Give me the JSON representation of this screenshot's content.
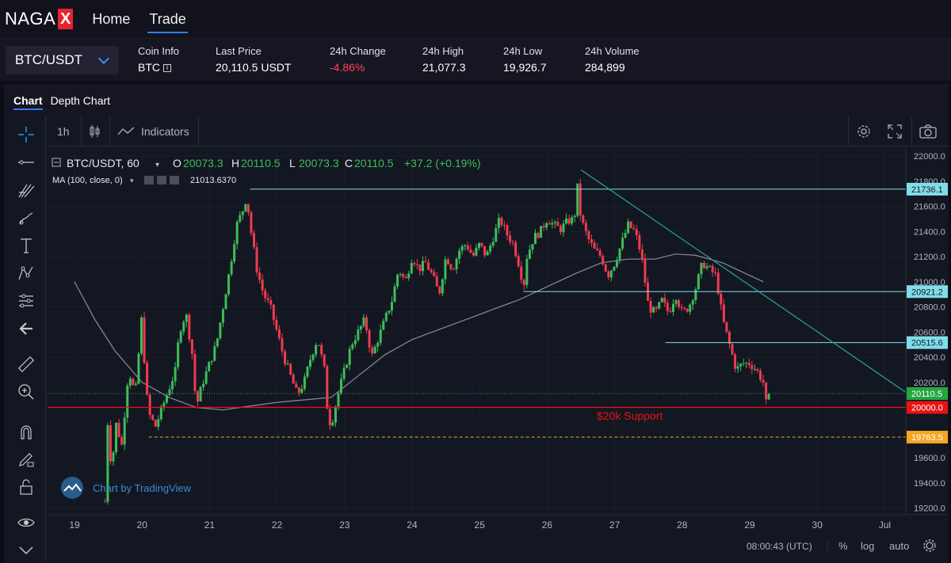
{
  "nav": {
    "logo_text": "NAGA",
    "logo_mark": "X",
    "home": "Home",
    "trade": "Trade"
  },
  "market": {
    "pair": "BTC/USDT",
    "coin_info_label": "Coin Info",
    "coin_info_value": "BTC",
    "last_price_label": "Last Price",
    "last_price_value": "20,110.5 USDT",
    "change_label": "24h Change",
    "change_value": "-4.86%",
    "high_label": "24h High",
    "high_value": "21,077.3",
    "low_label": "24h Low",
    "low_value": "19,926.7",
    "volume_label": "24h Volume",
    "volume_value": "284,899"
  },
  "tabs": {
    "chart": "Chart",
    "depth": "Depth Chart"
  },
  "toolbar": {
    "interval": "1h",
    "indicators": "Indicators",
    "left_tools": [
      "crosshair-icon",
      "trend-line-icon",
      "fib-icon",
      "brush-icon",
      "text-icon",
      "pattern-icon",
      "prediction-icon",
      "back-arrow-icon",
      "ruler-icon",
      "zoom-in-icon",
      "magnet-icon",
      "lock-draw-icon",
      "lock-icon",
      "eye-icon",
      "expand-down-icon"
    ]
  },
  "legend": {
    "symbol": "BTC/USDT, 60",
    "o_label": "O",
    "o": "20073.3",
    "h_label": "H",
    "h": "20110.5",
    "l_label": "L",
    "l": "20073.3",
    "c_label": "C",
    "c": "20110.5",
    "change": "+37.2 (+0.19%)",
    "ma_label": "MA (100, close, 0)",
    "ma_value": "21013.6370"
  },
  "bottom": {
    "time": "08:00:43 (UTC)",
    "percent": "%",
    "log": "log",
    "auto": "auto"
  },
  "watermark": "Chart by TradingView",
  "annotation": "$20k Support",
  "chart_data": {
    "type": "candlestick",
    "title": "BTC/USDT, 60",
    "ylim": [
      19100,
      22050
    ],
    "y_ticks": [
      22000.0,
      21800.0,
      21600.0,
      21400.0,
      21200.0,
      21000.0,
      20800.0,
      20600.0,
      20400.0,
      20200.0,
      19600.0,
      19400.0,
      19200.0
    ],
    "x_ticks": [
      "19",
      "20",
      "21",
      "22",
      "23",
      "24",
      "25",
      "26",
      "27",
      "28",
      "29",
      "30",
      "Jul"
    ],
    "price_labels": [
      {
        "value": 21736.1,
        "text": "21736.1",
        "color": "#80deea"
      },
      {
        "value": 20921.2,
        "text": "20921.2",
        "color": "#80deea"
      },
      {
        "value": 20515.6,
        "text": "20515.6",
        "color": "#80deea"
      },
      {
        "value": 20110.5,
        "text": "20110.5",
        "color": "#26a641"
      },
      {
        "value": 20000.0,
        "text": "20000.0",
        "color": "#e81313"
      },
      {
        "value": 19763.5,
        "text": "19763.5",
        "color": "#f5a623"
      }
    ],
    "close_path": [
      [
        19.45,
        19250
      ],
      [
        19.5,
        20000
      ],
      [
        19.55,
        19400
      ],
      [
        19.6,
        19900
      ],
      [
        19.7,
        19700
      ],
      [
        19.8,
        20300
      ],
      [
        19.9,
        20100
      ],
      [
        20.0,
        20750
      ],
      [
        20.05,
        20200
      ],
      [
        20.1,
        19950
      ],
      [
        20.2,
        19850
      ],
      [
        20.3,
        20000
      ],
      [
        20.4,
        20150
      ],
      [
        20.5,
        20300
      ],
      [
        20.55,
        20600
      ],
      [
        20.65,
        20750
      ],
      [
        20.75,
        20400
      ],
      [
        20.8,
        20000
      ],
      [
        20.9,
        20200
      ],
      [
        21.0,
        20350
      ],
      [
        21.1,
        20500
      ],
      [
        21.2,
        20800
      ],
      [
        21.3,
        21100
      ],
      [
        21.4,
        21450
      ],
      [
        21.5,
        21580
      ],
      [
        21.55,
        21680
      ],
      [
        21.6,
        21450
      ],
      [
        21.7,
        21100
      ],
      [
        21.8,
        20900
      ],
      [
        21.9,
        20800
      ],
      [
        22.0,
        20600
      ],
      [
        22.1,
        20400
      ],
      [
        22.2,
        20250
      ],
      [
        22.3,
        20100
      ],
      [
        22.4,
        20200
      ],
      [
        22.5,
        20400
      ],
      [
        22.6,
        20550
      ],
      [
        22.7,
        20300
      ],
      [
        22.75,
        19950
      ],
      [
        22.8,
        19850
      ],
      [
        22.9,
        20100
      ],
      [
        23.0,
        20300
      ],
      [
        23.1,
        20500
      ],
      [
        23.2,
        20600
      ],
      [
        23.3,
        20700
      ],
      [
        23.4,
        20400
      ],
      [
        23.5,
        20550
      ],
      [
        23.6,
        20700
      ],
      [
        23.7,
        20850
      ],
      [
        23.8,
        21100
      ],
      [
        23.9,
        21000
      ],
      [
        24.0,
        21200
      ],
      [
        24.1,
        21100
      ],
      [
        24.2,
        21150
      ],
      [
        24.3,
        21050
      ],
      [
        24.4,
        20900
      ],
      [
        24.5,
        21200
      ],
      [
        24.6,
        21100
      ],
      [
        24.7,
        21250
      ],
      [
        24.8,
        21300
      ],
      [
        24.9,
        21200
      ],
      [
        25.0,
        21300
      ],
      [
        25.1,
        21200
      ],
      [
        25.2,
        21350
      ],
      [
        25.3,
        21500
      ],
      [
        25.4,
        21380
      ],
      [
        25.5,
        21300
      ],
      [
        25.6,
        21100
      ],
      [
        25.65,
        20950
      ],
      [
        25.7,
        21200
      ],
      [
        25.8,
        21350
      ],
      [
        25.9,
        21400
      ],
      [
        26.0,
        21500
      ],
      [
        26.1,
        21450
      ],
      [
        26.2,
        21420
      ],
      [
        26.3,
        21480
      ],
      [
        26.4,
        21500
      ],
      [
        26.45,
        21750
      ],
      [
        26.5,
        21500
      ],
      [
        26.6,
        21350
      ],
      [
        26.7,
        21250
      ],
      [
        26.8,
        21200
      ],
      [
        26.9,
        21050
      ],
      [
        27.0,
        21150
      ],
      [
        27.1,
        21300
      ],
      [
        27.2,
        21450
      ],
      [
        27.3,
        21400
      ],
      [
        27.4,
        21200
      ],
      [
        27.5,
        20800
      ],
      [
        27.6,
        20750
      ],
      [
        27.7,
        20850
      ],
      [
        27.8,
        20750
      ],
      [
        27.9,
        20900
      ],
      [
        28.0,
        20750
      ],
      [
        28.1,
        20800
      ],
      [
        28.2,
        20950
      ],
      [
        28.3,
        21150
      ],
      [
        28.4,
        21100
      ],
      [
        28.5,
        21050
      ],
      [
        28.6,
        20700
      ],
      [
        28.7,
        20500
      ],
      [
        28.8,
        20300
      ],
      [
        28.9,
        20350
      ],
      [
        29.0,
        20350
      ],
      [
        29.1,
        20300
      ],
      [
        29.2,
        20200
      ],
      [
        29.25,
        20000
      ],
      [
        29.3,
        20110
      ]
    ],
    "ma_path": [
      [
        19.0,
        21000
      ],
      [
        19.3,
        20700
      ],
      [
        19.6,
        20450
      ],
      [
        20.0,
        20200
      ],
      [
        20.4,
        20080
      ],
      [
        20.8,
        20000
      ],
      [
        21.2,
        19980
      ],
      [
        21.6,
        20010
      ],
      [
        22.0,
        20040
      ],
      [
        22.4,
        20060
      ],
      [
        22.8,
        20080
      ],
      [
        23.2,
        20250
      ],
      [
        23.6,
        20420
      ],
      [
        24.0,
        20540
      ],
      [
        24.4,
        20620
      ],
      [
        24.8,
        20700
      ],
      [
        25.2,
        20780
      ],
      [
        25.6,
        20860
      ],
      [
        26.0,
        20960
      ],
      [
        26.4,
        21060
      ],
      [
        26.8,
        21150
      ],
      [
        27.2,
        21180
      ],
      [
        27.6,
        21180
      ],
      [
        27.9,
        21220
      ],
      [
        28.2,
        21210
      ],
      [
        28.6,
        21150
      ],
      [
        29.0,
        21050
      ],
      [
        29.2,
        21000
      ]
    ]
  }
}
